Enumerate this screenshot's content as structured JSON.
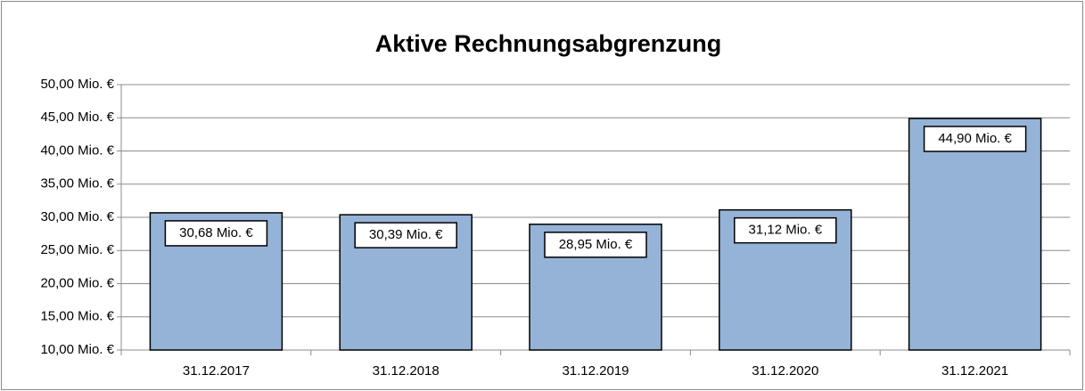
{
  "chart_data": {
    "type": "bar",
    "title": "Aktive Rechnungsabgrenzung",
    "categories": [
      "31.12.2017",
      "31.12.2018",
      "31.12.2019",
      "31.12.2020",
      "31.12.2021"
    ],
    "values": [
      30.68,
      30.39,
      28.95,
      31.12,
      44.9
    ],
    "value_labels": [
      "30,68 Mio. €",
      "30,39 Mio. €",
      "28,95 Mio. €",
      "31,12 Mio. €",
      "44,90 Mio. €"
    ],
    "color": "#95b3d7",
    "ylim": [
      10,
      50
    ],
    "yticks": [
      {
        "value": 10,
        "label": "10,00 Mio. €"
      },
      {
        "value": 15,
        "label": "15,00 Mio. €"
      },
      {
        "value": 20,
        "label": "20,00 Mio. €"
      },
      {
        "value": 25,
        "label": "25,00 Mio. €"
      },
      {
        "value": 30,
        "label": "30,00 Mio. €"
      },
      {
        "value": 35,
        "label": "35,00 Mio. €"
      },
      {
        "value": 40,
        "label": "40,00 Mio. €"
      },
      {
        "value": 45,
        "label": "45,00 Mio. €"
      },
      {
        "value": 50,
        "label": "50,00 Mio. €"
      }
    ],
    "grid": true
  }
}
